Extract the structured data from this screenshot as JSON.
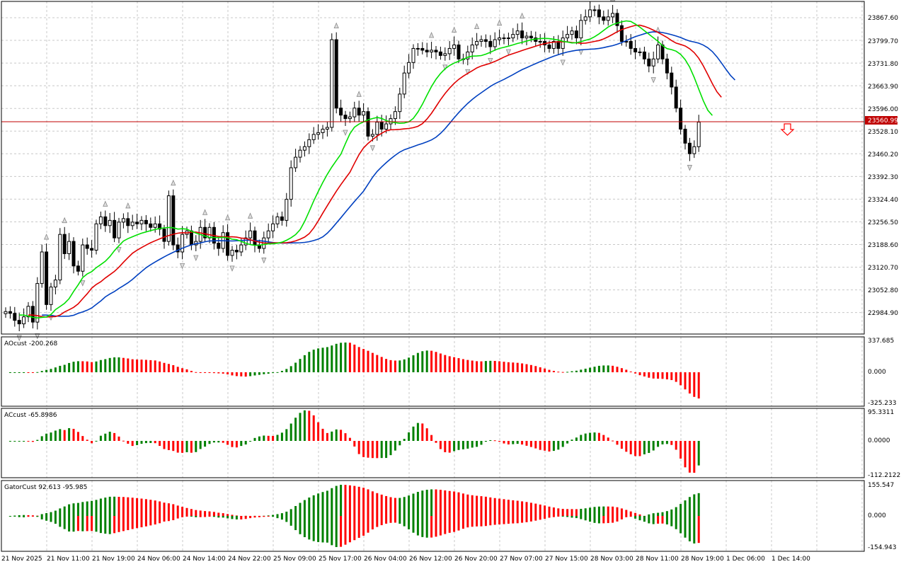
{
  "panes": {
    "main": {
      "price_label": "23560.99",
      "ticks": [
        "23867.60",
        "23799.70",
        "23731.80",
        "23663.90",
        "23596.00",
        "23528.10",
        "23460.20",
        "23392.30",
        "23324.40",
        "23256.50",
        "23188.60",
        "23120.70",
        "23052.80",
        "22984.90"
      ]
    },
    "ao": {
      "title": "AOcust -200.268",
      "ticks": [
        "337.685",
        "0.000",
        "-325.233"
      ]
    },
    "ac": {
      "title": "ACcust -65.8986",
      "ticks": [
        "95.3311",
        "0.0000",
        "-112.2122"
      ]
    },
    "gator": {
      "title": "GatorCust 92.613 -95.985",
      "ticks": [
        "155.547",
        "0.000",
        "-154.943"
      ]
    }
  },
  "time_axis": [
    "21 Nov 2025",
    "21 Nov 11:00",
    "21 Nov 19:00",
    "24 Nov 06:00",
    "24 Nov 14:00",
    "24 Nov 22:00",
    "25 Nov 09:00",
    "25 Nov 17:00",
    "26 Nov 04:00",
    "26 Nov 12:00",
    "26 Nov 20:00",
    "27 Nov 07:00",
    "27 Nov 15:00",
    "28 Nov 03:00",
    "28 Nov 11:00",
    "28 Nov 19:00",
    "1 Dec 06:00",
    "1 Dec 14:00"
  ],
  "colors": {
    "up": "#008000",
    "down": "#ff0000",
    "jaw": "#0040c0",
    "teeth": "#e00000",
    "lips": "#00e000",
    "price_line": "#c00000"
  },
  "chart_data": {
    "type": "candlestick",
    "close": [
      23020,
      23015,
      22995,
      22985,
      23005,
      23035,
      22990,
      23100,
      23190,
      23040,
      23090,
      23110,
      23240,
      23185,
      23220,
      23150,
      23135,
      23210,
      23200,
      23195,
      23270,
      23290,
      23265,
      23280,
      23230,
      23275,
      23285,
      23265,
      23275,
      23270,
      23280,
      23270,
      23260,
      23270,
      23255,
      23220,
      23350,
      23210,
      23190,
      23240,
      23250,
      23210,
      23220,
      23260,
      23230,
      23260,
      23215,
      23200,
      23245,
      23180,
      23195,
      23190,
      23210,
      23230,
      23250,
      23210,
      23200,
      23230,
      23250,
      23270,
      23290,
      23280,
      23340,
      23430,
      23460,
      23480,
      23490,
      23510,
      23525,
      23530,
      23540,
      23545,
      23795,
      23600,
      23580,
      23570,
      23575,
      23600,
      23580,
      23590,
      23520,
      23525,
      23560,
      23540,
      23555,
      23570,
      23590,
      23640,
      23700,
      23730,
      23770,
      23770,
      23765,
      23760,
      23765,
      23760,
      23750,
      23755,
      23770,
      23780,
      23740,
      23740,
      23760,
      23780,
      23790,
      23795,
      23790,
      23775,
      23795,
      23800,
      23800,
      23800,
      23810,
      23820,
      23800,
      23805,
      23800,
      23790,
      23790,
      23780,
      23770,
      23790,
      23770,
      23800,
      23810,
      23820,
      23800,
      23850,
      23860,
      23880,
      23880,
      23860,
      23850,
      23860,
      23870,
      23835,
      23790,
      23790,
      23770,
      23760,
      23760,
      23740,
      23720,
      23740,
      23780,
      23740,
      23700,
      23660,
      23600,
      23540,
      23500,
      23470,
      23490,
      23560
    ],
    "median": [
      23010,
      23010,
      22995,
      22990,
      22995,
      23010,
      23010,
      23040,
      23080,
      23070,
      23080,
      23110,
      23160,
      23170,
      23200,
      23170,
      23160,
      23190,
      23190,
      23200,
      23230,
      23260,
      23265,
      23275,
      23255,
      23255,
      23260,
      23262,
      23262,
      23265,
      23268,
      23268,
      23265,
      23265,
      23255,
      23240,
      23260,
      23250,
      23225,
      23225,
      23220,
      23220,
      23215,
      23230,
      23230,
      23235,
      23225,
      23210,
      23220,
      23200,
      23195,
      23195,
      23200,
      23210,
      23220,
      23220,
      23215,
      23220,
      23230,
      23245,
      23260,
      23275,
      23310,
      23370,
      23420,
      23455,
      23470,
      23490,
      23505,
      23515,
      23525,
      23540,
      23620,
      23640,
      23620,
      23590,
      23585,
      23590,
      23585,
      23585,
      23560,
      23540,
      23545,
      23550,
      23550,
      23560,
      23575,
      23610,
      23660,
      23700,
      23740,
      23760,
      23765,
      23765,
      23765,
      23760,
      23755,
      23755,
      23760,
      23770,
      23760,
      23750,
      23755,
      23770,
      23780,
      23790,
      23790,
      23785,
      23790,
      23795,
      23800,
      23800,
      23805,
      23810,
      23805,
      23805,
      23800,
      23795,
      23790,
      23785,
      23775,
      23780,
      23775,
      23790,
      23800,
      23810,
      23810,
      23830,
      23845,
      23860,
      23870,
      23865,
      23860,
      23860,
      23860,
      23840,
      23810,
      23795,
      23780,
      23770,
      23760,
      23750,
      23730,
      23735,
      23755,
      23745,
      23715,
      23680,
      23630,
      23570,
      23520,
      23490,
      23485,
      23520
    ],
    "ylim": [
      22960,
      23900
    ],
    "indicators": [
      "Alligator (jaw, teeth, lips)",
      "AOcust",
      "ACcust",
      "GatorCust"
    ]
  }
}
